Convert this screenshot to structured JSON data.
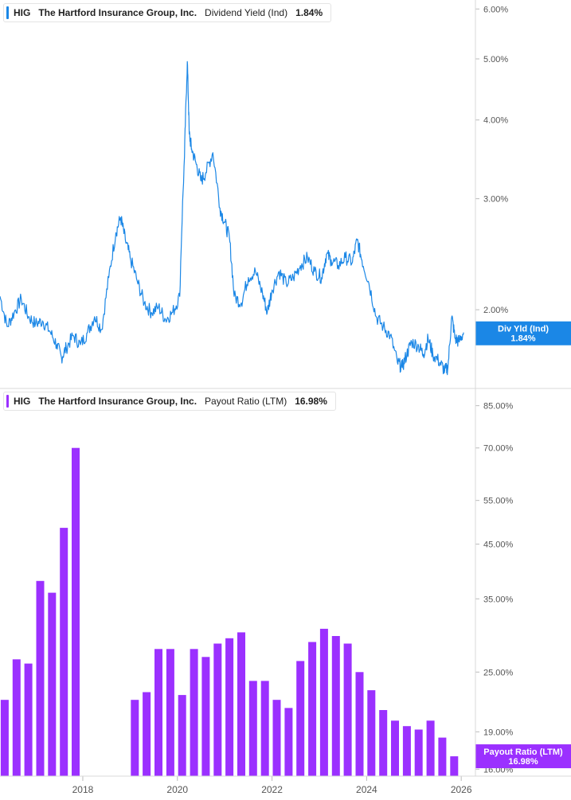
{
  "colors": {
    "yield": "#1b87e6",
    "payout": "#9b30ff",
    "grid": "#d9d9d9",
    "axis_text": "#555555"
  },
  "chart_data": [
    {
      "type": "line",
      "ticker": "HIG",
      "company": "The Hartford Insurance Group, Inc.",
      "metric": "Dividend Yield (Ind)",
      "current_value": "1.84%",
      "badge_label": "Div Yld (Ind)",
      "badge_value": "1.84%",
      "y_scale": "log",
      "ylim": [
        1.5,
        6.2
      ],
      "y_ticks": [
        "6.00%",
        "5.00%",
        "4.00%",
        "3.00%",
        "2.00%"
      ],
      "xlim": [
        2016.25,
        2026.3
      ],
      "points": [
        [
          2016.25,
          2.1
        ],
        [
          2016.4,
          1.88
        ],
        [
          2016.55,
          1.98
        ],
        [
          2016.7,
          2.08
        ],
        [
          2016.85,
          1.95
        ],
        [
          2017.0,
          1.9
        ],
        [
          2017.15,
          1.92
        ],
        [
          2017.3,
          1.85
        ],
        [
          2017.45,
          1.76
        ],
        [
          2017.55,
          1.68
        ],
        [
          2017.65,
          1.74
        ],
        [
          2017.8,
          1.82
        ],
        [
          2017.95,
          1.76
        ],
        [
          2018.1,
          1.84
        ],
        [
          2018.25,
          1.95
        ],
        [
          2018.4,
          1.86
        ],
        [
          2018.55,
          2.25
        ],
        [
          2018.7,
          2.65
        ],
        [
          2018.8,
          2.8
        ],
        [
          2018.9,
          2.58
        ],
        [
          2019.0,
          2.42
        ],
        [
          2019.15,
          2.22
        ],
        [
          2019.3,
          2.05
        ],
        [
          2019.45,
          1.98
        ],
        [
          2019.6,
          2.02
        ],
        [
          2019.75,
          1.93
        ],
        [
          2019.9,
          1.98
        ],
        [
          2020.05,
          2.1
        ],
        [
          2020.15,
          3.5
        ],
        [
          2020.21,
          4.95
        ],
        [
          2020.25,
          3.8
        ],
        [
          2020.3,
          3.6
        ],
        [
          2020.4,
          3.4
        ],
        [
          2020.5,
          3.2
        ],
        [
          2020.6,
          3.3
        ],
        [
          2020.75,
          3.55
        ],
        [
          2020.9,
          2.9
        ],
        [
          2021.0,
          2.75
        ],
        [
          2021.1,
          2.6
        ],
        [
          2021.2,
          2.1
        ],
        [
          2021.35,
          2.05
        ],
        [
          2021.5,
          2.25
        ],
        [
          2021.65,
          2.3
        ],
        [
          2021.8,
          2.12
        ],
        [
          2021.9,
          1.98
        ],
        [
          2022.0,
          2.15
        ],
        [
          2022.15,
          2.3
        ],
        [
          2022.3,
          2.2
        ],
        [
          2022.45,
          2.25
        ],
        [
          2022.6,
          2.35
        ],
        [
          2022.75,
          2.42
        ],
        [
          2022.9,
          2.3
        ],
        [
          2023.05,
          2.25
        ],
        [
          2023.15,
          2.45
        ],
        [
          2023.25,
          2.4
        ],
        [
          2023.4,
          2.35
        ],
        [
          2023.55,
          2.42
        ],
        [
          2023.7,
          2.38
        ],
        [
          2023.8,
          2.58
        ],
        [
          2023.9,
          2.4
        ],
        [
          2024.05,
          2.2
        ],
        [
          2024.2,
          1.95
        ],
        [
          2024.35,
          1.88
        ],
        [
          2024.5,
          1.82
        ],
        [
          2024.65,
          1.65
        ],
        [
          2024.75,
          1.62
        ],
        [
          2024.85,
          1.7
        ],
        [
          2024.95,
          1.78
        ],
        [
          2025.1,
          1.75
        ],
        [
          2025.2,
          1.7
        ],
        [
          2025.3,
          1.8
        ],
        [
          2025.4,
          1.7
        ],
        [
          2025.55,
          1.65
        ],
        [
          2025.65,
          1.6
        ],
        [
          2025.72,
          1.62
        ],
        [
          2025.8,
          1.95
        ],
        [
          2025.87,
          1.8
        ],
        [
          2025.95,
          1.78
        ],
        [
          2026.05,
          1.84
        ]
      ]
    },
    {
      "type": "bar",
      "ticker": "HIG",
      "company": "The Hartford Insurance Group, Inc.",
      "metric": "Payout Ratio (LTM)",
      "current_value": "16.98%",
      "badge_label": "Payout Ratio (LTM)",
      "badge_value": "16.98%",
      "y_scale": "log",
      "ylim": [
        15.5,
        92
      ],
      "y_ticks": [
        "85.00%",
        "70.00%",
        "55.00%",
        "45.00%",
        "35.00%",
        "25.00%",
        "19.00%",
        "16.00%"
      ],
      "x_ticks": [
        "2018",
        "2020",
        "2022",
        "2024",
        "2026"
      ],
      "x_tick_values": [
        2018,
        2020,
        2022,
        2024,
        2026
      ],
      "xlim": [
        2016.25,
        2026.3
      ],
      "bar_dates": [
        2016.35,
        2016.6,
        2016.85,
        2017.1,
        2017.35,
        2017.6,
        2017.85,
        2019.1,
        2019.35,
        2019.6,
        2019.85,
        2020.1,
        2020.35,
        2020.6,
        2020.85,
        2021.1,
        2021.35,
        2021.6,
        2021.85,
        2022.1,
        2022.35,
        2022.6,
        2022.85,
        2023.1,
        2023.35,
        2023.6,
        2023.85,
        2024.1,
        2024.35,
        2024.6,
        2024.85,
        2025.1,
        2025.35,
        2025.6,
        2025.85
      ],
      "values": [
        22.0,
        26.5,
        26.0,
        38.0,
        36.0,
        48.5,
        70.0,
        22.0,
        22.8,
        27.8,
        27.8,
        22.5,
        27.8,
        26.8,
        28.5,
        29.2,
        30.0,
        24.0,
        24.0,
        22.0,
        21.2,
        26.3,
        28.7,
        30.5,
        29.5,
        28.5,
        25.0,
        23.0,
        21.0,
        20.0,
        19.5,
        19.2,
        20.0,
        18.5,
        16.98
      ]
    }
  ]
}
